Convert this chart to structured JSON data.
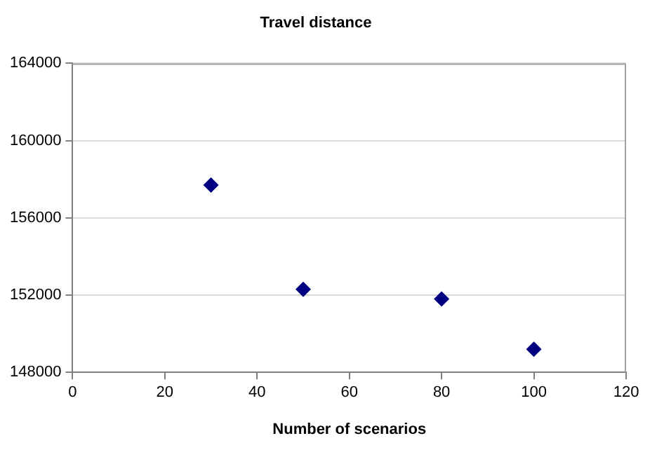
{
  "chart_data": {
    "type": "scatter",
    "title": "Travel distance",
    "xlabel": "Number of scenarios",
    "x": [
      30,
      50,
      80,
      100
    ],
    "series": [
      {
        "color": "#000080",
        "values": [
          157700,
          152300,
          151800,
          149200
        ]
      }
    ],
    "xlim": [
      0,
      120
    ],
    "xticks": [
      0,
      20,
      40,
      60,
      80,
      100,
      120
    ],
    "ylim": [
      148000,
      164000
    ],
    "yticks": [
      148000,
      152000,
      156000,
      160000,
      164000
    ],
    "grid": "y",
    "marker": "diamond",
    "legend": false
  }
}
